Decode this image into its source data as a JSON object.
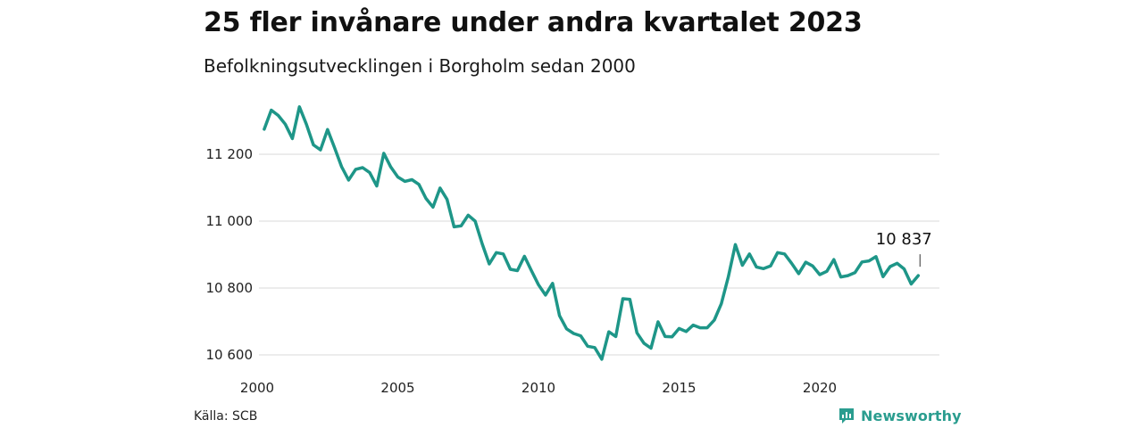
{
  "header": {
    "title": "25 fler invånare under andra kvartalet 2023",
    "subtitle": "Befolkningsutvecklingen i Borgholm sedan 2000"
  },
  "footer": {
    "source": "Källa: SCB",
    "brand": "Newsworthy"
  },
  "colors": {
    "line": "#1e9688",
    "grid": "#d9d9d9",
    "brand": "#2a9d8f"
  },
  "icons": [
    "newsworthy-logo-icon"
  ],
  "chart_data": {
    "type": "line",
    "x_unit": "year",
    "xlim": [
      2000,
      2024
    ],
    "ylim": [
      10570,
      11360
    ],
    "x_ticks": [
      2000,
      2005,
      2010,
      2015,
      2020
    ],
    "x_tick_labels": [
      "2000",
      "2005",
      "2010",
      "2015",
      "2020"
    ],
    "y_ticks": [
      10600,
      10800,
      11000,
      11200
    ],
    "y_tick_labels": [
      "10 600",
      "10 800",
      "11 000",
      "11 200"
    ],
    "grid": "horizontal",
    "end_label": "10 837",
    "series": [
      {
        "x": [
          2000.25,
          2000.5,
          2000.75,
          2001.0,
          2001.25,
          2001.5,
          2001.75,
          2002.0,
          2002.25,
          2002.5,
          2002.75,
          2003.0,
          2003.25,
          2003.5,
          2003.75,
          2004.0,
          2004.25,
          2004.5,
          2004.75,
          2005.0,
          2005.25,
          2005.5,
          2005.75,
          2006.0,
          2006.25,
          2006.5,
          2006.75,
          2007.0,
          2007.25,
          2007.5,
          2007.75,
          2008.0,
          2008.25,
          2008.5,
          2008.75,
          2009.0,
          2009.25,
          2009.5,
          2009.75,
          2010.0,
          2010.25,
          2010.5,
          2010.75,
          2011.0,
          2011.25,
          2011.5,
          2011.75,
          2012.0,
          2012.25,
          2012.5,
          2012.75,
          2013.0,
          2013.25,
          2013.5,
          2013.75,
          2014.0,
          2014.25,
          2014.5,
          2014.75,
          2015.0,
          2015.25,
          2015.5,
          2015.75,
          2016.0,
          2016.25,
          2016.5,
          2016.75,
          2017.0,
          2017.25,
          2017.5,
          2017.75,
          2018.0,
          2018.25,
          2018.5,
          2018.75,
          2019.0,
          2019.25,
          2019.5,
          2019.75,
          2020.0,
          2020.25,
          2020.5,
          2020.75,
          2021.0,
          2021.25,
          2021.5,
          2021.75,
          2022.0,
          2022.25,
          2022.5,
          2022.75,
          2023.0,
          2023.25,
          2023.5
        ],
        "values": [
          11275,
          11332,
          11316,
          11290,
          11247,
          11342,
          11290,
          11228,
          11213,
          11274,
          11220,
          11163,
          11123,
          11155,
          11160,
          11145,
          11105,
          11203,
          11162,
          11132,
          11119,
          11124,
          11110,
          11068,
          11042,
          11099,
          11065,
          10983,
          10986,
          11018,
          11000,
          10932,
          10872,
          10906,
          10902,
          10856,
          10852,
          10895,
          10852,
          10810,
          10779,
          10814,
          10717,
          10678,
          10664,
          10657,
          10626,
          10622,
          10587,
          10669,
          10655,
          10768,
          10766,
          10666,
          10635,
          10620,
          10699,
          10655,
          10654,
          10679,
          10670,
          10689,
          10681,
          10681,
          10704,
          10753,
          10833,
          10930,
          10868,
          10902,
          10863,
          10858,
          10866,
          10906,
          10902,
          10874,
          10843,
          10877,
          10866,
          10840,
          10850,
          10885,
          10833,
          10837,
          10846,
          10878,
          10881,
          10894,
          10834,
          10864,
          10874,
          10857,
          10812,
          10837
        ]
      }
    ]
  }
}
